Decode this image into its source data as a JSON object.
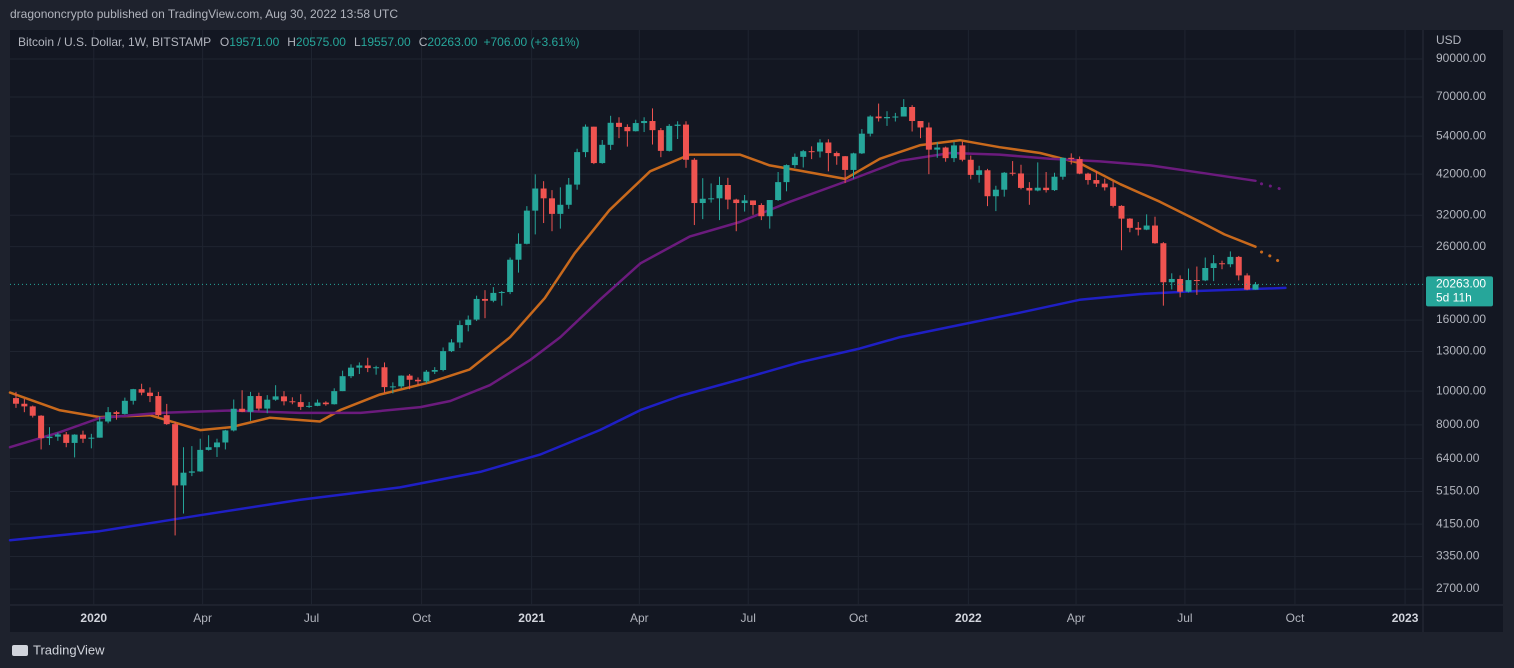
{
  "header": {
    "publisher": "dragononcrypto published on TradingView.com, Aug 30, 2022 13:58 UTC",
    "footer": "TradingView"
  },
  "chart_data": {
    "type": "candlestick",
    "title": "Bitcoin / U.S. Dollar, 1W, BITSTAMP",
    "ohlc": [
      {
        "label": "O",
        "value": "19571.00"
      },
      {
        "label": "H",
        "value": "20575.00"
      },
      {
        "label": "L",
        "value": "19557.00"
      },
      {
        "label": "C",
        "value": "20263.00"
      }
    ],
    "change": "+706.00 (+3.61%)",
    "currency": "USD",
    "log_scale": true,
    "grid": true,
    "up_color": "#26a69a",
    "down_color": "#ef5350",
    "ylim": [
      2430,
      109000
    ],
    "yticks": [
      {
        "value": 90000,
        "label": "90000.00"
      },
      {
        "value": 70000,
        "label": "70000.00"
      },
      {
        "value": 54000,
        "label": "54000.00"
      },
      {
        "value": 42000,
        "label": "42000.00"
      },
      {
        "value": 32000,
        "label": "32000.00"
      },
      {
        "value": 26000,
        "label": "26000.00"
      },
      {
        "value": 16000,
        "label": "16000.00"
      },
      {
        "value": 13000,
        "label": "13000.00"
      },
      {
        "value": 10000,
        "label": "10000.00"
      },
      {
        "value": 8000,
        "label": "8000.00"
      },
      {
        "value": 6400,
        "label": "6400.00"
      },
      {
        "value": 5150,
        "label": "5150.00"
      },
      {
        "value": 4150,
        "label": "4150.00"
      },
      {
        "value": 3350,
        "label": "3350.00"
      },
      {
        "value": 2700,
        "label": "2700.00"
      }
    ],
    "xlim": [
      "2019-10-23",
      "2023-01-16"
    ],
    "xticks": [
      {
        "value": "2020-01-01",
        "label": "2020"
      },
      {
        "value": "2020-04-01",
        "label": "Apr"
      },
      {
        "value": "2020-07-01",
        "label": "Jul"
      },
      {
        "value": "2020-10-01",
        "label": "Oct"
      },
      {
        "value": "2021-01-01",
        "label": "2021"
      },
      {
        "value": "2021-04-01",
        "label": "Apr"
      },
      {
        "value": "2021-07-01",
        "label": "Jul"
      },
      {
        "value": "2021-10-01",
        "label": "Oct"
      },
      {
        "value": "2022-01-01",
        "label": "2022"
      },
      {
        "value": "2022-04-01",
        "label": "Apr"
      },
      {
        "value": "2022-07-01",
        "label": "Jul"
      },
      {
        "value": "2022-10-01",
        "label": "Oct"
      },
      {
        "value": "2023-01-01",
        "label": "2023"
      }
    ],
    "last_price": {
      "value": 20263,
      "label": "20263.00",
      "countdown": "5d 11h",
      "color": "#26a69a"
    },
    "candles": {
      "x": [
        "2019-10-28",
        "2019-11-04",
        "2019-11-11",
        "2019-11-18",
        "2019-11-25",
        "2019-12-02",
        "2019-12-09",
        "2019-12-16",
        "2019-12-23",
        "2019-12-30",
        "2020-01-06",
        "2020-01-13",
        "2020-01-20",
        "2020-01-27",
        "2020-02-03",
        "2020-02-10",
        "2020-02-17",
        "2020-02-24",
        "2020-03-02",
        "2020-03-09",
        "2020-03-16",
        "2020-03-23",
        "2020-03-30",
        "2020-04-06",
        "2020-04-13",
        "2020-04-20",
        "2020-04-27",
        "2020-05-04",
        "2020-05-11",
        "2020-05-18",
        "2020-05-25",
        "2020-06-01",
        "2020-06-08",
        "2020-06-15",
        "2020-06-22",
        "2020-06-29",
        "2020-07-06",
        "2020-07-13",
        "2020-07-20",
        "2020-07-27",
        "2020-08-03",
        "2020-08-10",
        "2020-08-17",
        "2020-08-24",
        "2020-08-31",
        "2020-09-07",
        "2020-09-14",
        "2020-09-21",
        "2020-09-28",
        "2020-10-05",
        "2020-10-12",
        "2020-10-19",
        "2020-10-26",
        "2020-11-02",
        "2020-11-09",
        "2020-11-16",
        "2020-11-23",
        "2020-11-30",
        "2020-12-07",
        "2020-12-14",
        "2020-12-21",
        "2020-12-28",
        "2021-01-04",
        "2021-01-11",
        "2021-01-18",
        "2021-01-25",
        "2021-02-01",
        "2021-02-08",
        "2021-02-15",
        "2021-02-22",
        "2021-03-01",
        "2021-03-08",
        "2021-03-15",
        "2021-03-22",
        "2021-03-29",
        "2021-04-05",
        "2021-04-12",
        "2021-04-19",
        "2021-04-26",
        "2021-05-03",
        "2021-05-10",
        "2021-05-17",
        "2021-05-24",
        "2021-05-31",
        "2021-06-07",
        "2021-06-14",
        "2021-06-21",
        "2021-06-28",
        "2021-07-05",
        "2021-07-12",
        "2021-07-19",
        "2021-07-26",
        "2021-08-02",
        "2021-08-09",
        "2021-08-16",
        "2021-08-23",
        "2021-08-30",
        "2021-09-06",
        "2021-09-13",
        "2021-09-20",
        "2021-09-27",
        "2021-10-04",
        "2021-10-11",
        "2021-10-18",
        "2021-10-25",
        "2021-11-01",
        "2021-11-08",
        "2021-11-15",
        "2021-11-22",
        "2021-11-29",
        "2021-12-06",
        "2021-12-13",
        "2021-12-20",
        "2021-12-27",
        "2022-01-03",
        "2022-01-10",
        "2022-01-17",
        "2022-01-24",
        "2022-01-31",
        "2022-02-07",
        "2022-02-14",
        "2022-02-21",
        "2022-02-28",
        "2022-03-07",
        "2022-03-14",
        "2022-03-21",
        "2022-03-28",
        "2022-04-04",
        "2022-04-11",
        "2022-04-18",
        "2022-04-25",
        "2022-05-02",
        "2022-05-09",
        "2022-05-16",
        "2022-05-23",
        "2022-05-30",
        "2022-06-06",
        "2022-06-13",
        "2022-06-20",
        "2022-06-27",
        "2022-07-04",
        "2022-07-11",
        "2022-07-18",
        "2022-07-25",
        "2022-08-01",
        "2022-08-08",
        "2022-08-15",
        "2022-08-22",
        "2022-08-29"
      ],
      "open": [
        9550,
        9200,
        9040,
        8500,
        7330,
        7400,
        7510,
        7100,
        7500,
        7300,
        7350,
        8180,
        8700,
        8600,
        9380,
        10130,
        9900,
        9680,
        8530,
        8040,
        5360,
        5830,
        5880,
        6780,
        6900,
        7120,
        7710,
        8900,
        8720,
        9680,
        8910,
        9450,
        9660,
        9350,
        9300,
        9010,
        9070,
        9270,
        9170,
        10000,
        11040,
        11680,
        11850,
        11650,
        11710,
        10270,
        10320,
        11080,
        10780,
        10670,
        11370,
        11500,
        13030,
        13800,
        15480,
        16050,
        18400,
        18180,
        19150,
        19260,
        23850,
        26500,
        33000,
        38200,
        35800,
        32300,
        34300,
        39200,
        48600,
        57500,
        45200,
        51000,
        59000,
        57400,
        55800,
        58900,
        59700,
        56200,
        49000,
        57800,
        58300,
        46200,
        34700,
        35700,
        35800,
        39100,
        35500,
        34700,
        35300,
        34250,
        31800,
        35400,
        39850,
        44600,
        47100,
        48900,
        48800,
        51800,
        48300,
        47300,
        43200,
        48200,
        54900,
        61500,
        60800,
        61300,
        61500,
        65500,
        59700,
        57200,
        49400,
        50100,
        46700,
        50800,
        46200,
        41800,
        43100,
        36300,
        37900,
        42400,
        42200,
        38350,
        37700,
        38400,
        37800,
        41300,
        46800,
        46400,
        42150,
        40400,
        39450,
        38500,
        34050,
        31300,
        29450,
        29100,
        29900,
        26600,
        20550,
        21000,
        19300,
        20850,
        20800,
        22580,
        23300,
        23150,
        24300,
        21500,
        19571
      ],
      "high": [
        9950,
        9500,
        9090,
        8530,
        7880,
        7600,
        7630,
        7520,
        7700,
        7540,
        8450,
        9000,
        8780,
        9580,
        10150,
        10500,
        10250,
        9950,
        9190,
        8170,
        6900,
        6950,
        7300,
        7470,
        7300,
        7740,
        9460,
        10060,
        9950,
        9900,
        9740,
        10400,
        10000,
        9600,
        9800,
        9310,
        9460,
        9350,
        10190,
        11450,
        11940,
        12090,
        12470,
        11830,
        12090,
        10600,
        11100,
        11200,
        10950,
        11500,
        11720,
        13350,
        14100,
        15950,
        16490,
        18800,
        19500,
        19900,
        19400,
        24200,
        28400,
        34000,
        41950,
        40100,
        37800,
        38500,
        40950,
        49700,
        58350,
        57500,
        52650,
        61800,
        61200,
        58400,
        60200,
        61200,
        64900,
        57000,
        58500,
        59600,
        59600,
        46700,
        40900,
        39500,
        41300,
        41000,
        35700,
        36600,
        35300,
        34650,
        35400,
        42600,
        44800,
        48150,
        49300,
        50500,
        52950,
        52900,
        48800,
        47350,
        48400,
        56600,
        62000,
        67000,
        63700,
        63000,
        69000,
        66300,
        59700,
        59100,
        51900,
        50400,
        52000,
        52100,
        47500,
        44400,
        43500,
        38900,
        42600,
        45800,
        44700,
        39850,
        45400,
        42600,
        42400,
        46900,
        48200,
        47200,
        42400,
        42900,
        40800,
        40000,
        34200,
        31400,
        30600,
        32200,
        31700,
        26800,
        21800,
        21500,
        22500,
        22800,
        24200,
        24600,
        23700,
        25200,
        24450,
        21800,
        20575
      ],
      "low": [
        8950,
        8700,
        8400,
        6800,
        7000,
        7200,
        6900,
        6450,
        7100,
        6850,
        7350,
        8080,
        8280,
        8570,
        9150,
        9730,
        9300,
        8450,
        8000,
        3850,
        4450,
        5700,
        5860,
        6750,
        6470,
        6800,
        7660,
        8700,
        8220,
        8800,
        8640,
        9380,
        9100,
        9170,
        8830,
        8950,
        9050,
        9080,
        9150,
        10000,
        10900,
        11200,
        11340,
        11150,
        9900,
        9850,
        10200,
        10130,
        10400,
        10530,
        11200,
        11400,
        12950,
        13300,
        14850,
        15900,
        16200,
        18000,
        17600,
        19000,
        21900,
        26400,
        28200,
        30400,
        28800,
        29300,
        33400,
        37900,
        47000,
        44900,
        45000,
        49300,
        53300,
        50400,
        55700,
        55500,
        51100,
        47000,
        48800,
        53000,
        43800,
        30000,
        31200,
        34800,
        31000,
        33300,
        28800,
        32800,
        32100,
        31000,
        29300,
        35200,
        37500,
        43800,
        43900,
        46400,
        46900,
        42800,
        44700,
        39600,
        40800,
        48000,
        53900,
        59500,
        57800,
        59500,
        61500,
        55700,
        53300,
        42000,
        46800,
        45600,
        45500,
        45700,
        40600,
        39700,
        34000,
        32900,
        36200,
        41600,
        38000,
        34300,
        37500,
        37200,
        37600,
        40500,
        44800,
        42000,
        39200,
        38600,
        37700,
        33700,
        25400,
        28600,
        28000,
        29000,
        26500,
        17600,
        19600,
        18600,
        19200,
        18900,
        20700,
        20700,
        22400,
        22700,
        20800,
        19500,
        19557
      ],
      "close": [
        9200,
        9040,
        8500,
        7330,
        7400,
        7510,
        7100,
        7500,
        7300,
        7350,
        8180,
        8700,
        8600,
        9380,
        10130,
        9900,
        9680,
        8530,
        8040,
        5360,
        5830,
        5880,
        6780,
        6900,
        7120,
        7710,
        8900,
        8720,
        9680,
        8910,
        9450,
        9660,
        9350,
        9300,
        9010,
        9070,
        9270,
        9170,
        10000,
        11040,
        11680,
        11850,
        11650,
        11710,
        10270,
        10320,
        11080,
        10780,
        10670,
        11370,
        11500,
        13030,
        13800,
        15480,
        16050,
        18400,
        18180,
        19150,
        19260,
        23850,
        26500,
        33000,
        38200,
        35800,
        32300,
        34300,
        39200,
        48600,
        57500,
        45200,
        51000,
        59000,
        57400,
        55800,
        58900,
        59700,
        56200,
        49000,
        57800,
        58300,
        46200,
        34700,
        35700,
        35800,
        39100,
        35500,
        34700,
        35300,
        34250,
        31800,
        35400,
        39850,
        44600,
        47100,
        48900,
        48800,
        51800,
        48300,
        47300,
        43200,
        48200,
        54900,
        61500,
        60800,
        61300,
        61500,
        65500,
        59700,
        57200,
        49400,
        50100,
        46700,
        50800,
        46200,
        41800,
        43100,
        36300,
        37900,
        42400,
        42200,
        38350,
        37700,
        38400,
        37800,
        41300,
        46800,
        46400,
        42150,
        40400,
        39450,
        38500,
        34050,
        31300,
        29450,
        29100,
        29900,
        26600,
        20550,
        21000,
        19300,
        20850,
        20800,
        22580,
        23300,
        23150,
        24300,
        21500,
        19571,
        20263
      ]
    },
    "lines": [
      {
        "color": "#c8691c",
        "x": [
          "2019-10-23",
          "2019-12-03",
          "2020-01-06",
          "2020-02-17",
          "2020-03-30",
          "2020-04-24",
          "2020-05-27",
          "2020-07-08",
          "2020-07-25",
          "2020-08-27",
          "2020-10-08",
          "2020-11-10",
          "2020-12-14",
          "2021-01-12",
          "2021-02-06",
          "2021-03-07",
          "2021-04-10",
          "2021-05-13",
          "2021-06-24",
          "2021-07-19",
          "2021-08-13",
          "2021-09-20",
          "2021-10-19",
          "2021-11-22",
          "2021-12-25",
          "2022-01-27",
          "2022-03-02",
          "2022-04-04",
          "2022-05-08",
          "2022-06-10",
          "2022-07-14",
          "2022-08-03",
          "2022-08-29"
        ],
        "values": [
          9900,
          8820,
          8420,
          8530,
          7730,
          7870,
          8380,
          8180,
          8820,
          9770,
          10600,
          11530,
          14290,
          18500,
          24900,
          33100,
          42800,
          47800,
          47800,
          44500,
          43000,
          40700,
          46500,
          50900,
          52600,
          50200,
          48300,
          45200,
          39300,
          35000,
          30600,
          28200,
          26000
        ]
      },
      {
        "color": "#c8691c",
        "dotted": true,
        "x": [
          "2022-09-03",
          "2022-09-12",
          "2022-09-20"
        ],
        "values": [
          25100,
          24300,
          23300
        ]
      },
      {
        "color": "#6b1b7d",
        "x": [
          "2019-10-23",
          "2019-12-03",
          "2020-01-06",
          "2020-02-25",
          "2020-04-24",
          "2020-06-21",
          "2020-08-11",
          "2020-09-30",
          "2020-10-25",
          "2020-11-27",
          "2020-12-31",
          "2021-01-25",
          "2021-02-27",
          "2021-04-02",
          "2021-05-13",
          "2021-06-24",
          "2021-08-05",
          "2021-09-24",
          "2021-11-05",
          "2021-12-17",
          "2022-01-27",
          "2022-03-10",
          "2022-04-21",
          "2022-06-02",
          "2022-07-14",
          "2022-08-29"
        ],
        "values": [
          6900,
          7610,
          8370,
          8660,
          8800,
          8660,
          8660,
          9000,
          9370,
          10400,
          12300,
          14300,
          18300,
          23300,
          27800,
          30600,
          35000,
          40400,
          45900,
          48300,
          47800,
          46500,
          45700,
          44500,
          42400,
          40200
        ]
      },
      {
        "color": "#6b1b7d",
        "dotted": true,
        "x": [
          "2022-09-03",
          "2022-09-12",
          "2022-09-20"
        ],
        "values": [
          39400,
          38700,
          38000
        ]
      },
      {
        "color": "#1f1fc4",
        "x": [
          "2019-10-23",
          "2020-01-06",
          "2020-03-30",
          "2020-06-21",
          "2020-09-13",
          "2020-11-19",
          "2021-01-08",
          "2021-02-27",
          "2021-04-02",
          "2021-05-05",
          "2021-06-24",
          "2021-08-13",
          "2021-10-02",
          "2021-11-05",
          "2021-12-25",
          "2022-02-13",
          "2022-04-04",
          "2022-05-24",
          "2022-07-14",
          "2022-09-23"
        ],
        "values": [
          3730,
          3960,
          4400,
          4870,
          5290,
          5860,
          6570,
          7730,
          8820,
          9680,
          10800,
          12100,
          13250,
          14300,
          15500,
          16800,
          18300,
          19000,
          19400,
          19800
        ]
      }
    ]
  }
}
